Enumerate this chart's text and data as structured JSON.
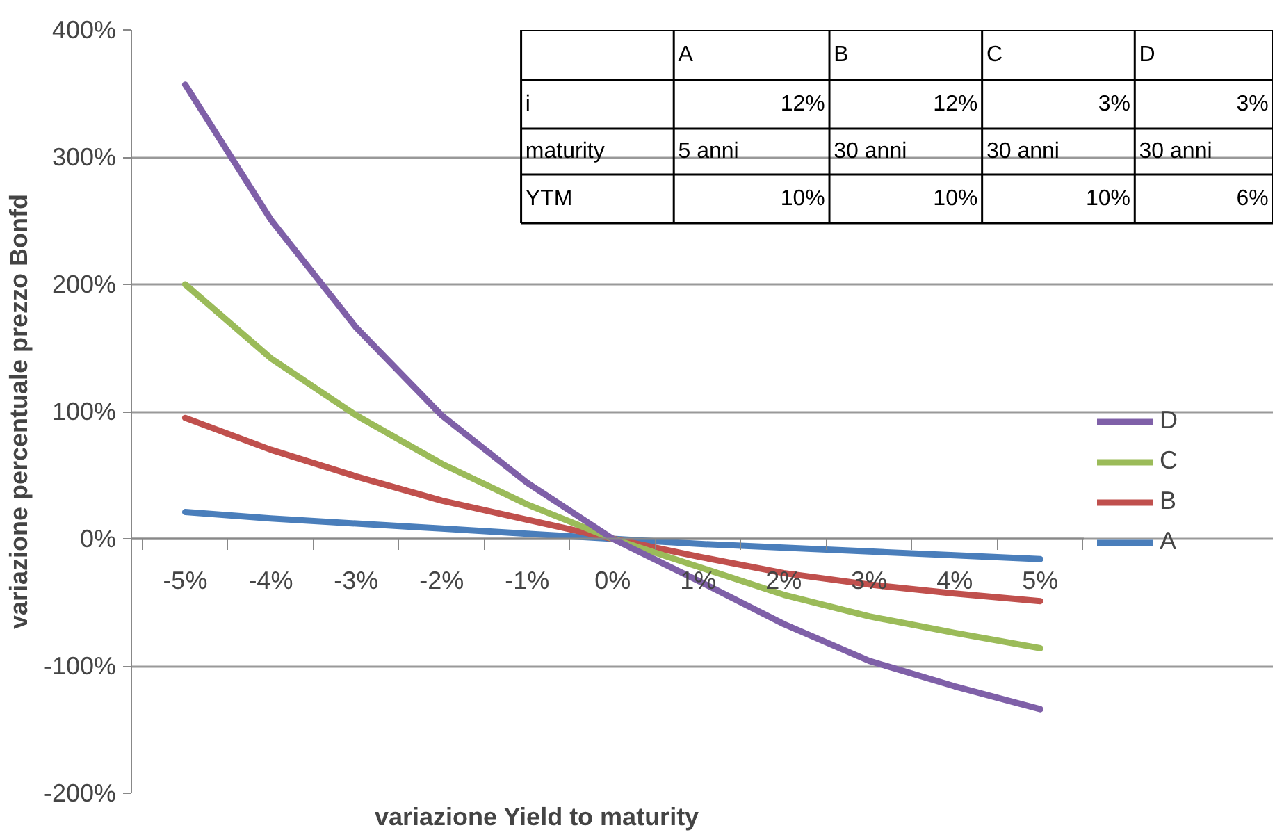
{
  "chart_data": {
    "type": "line",
    "xlabel": "variazione Yield to maturity",
    "ylabel": "variazione percentuale prezzo Bonfd",
    "categories": [
      "-5%",
      "-4%",
      "-3%",
      "-2%",
      "-1%",
      "0%",
      "1%",
      "2%",
      "3%",
      "4%",
      "5%"
    ],
    "series": [
      {
        "name": "A",
        "color": "#4a7ebb",
        "values": [
          21,
          16,
          12,
          8,
          4,
          0,
          -4,
          -7,
          -10,
          -13,
          -16
        ]
      },
      {
        "name": "B",
        "color": "#c0504d",
        "values": [
          95,
          70,
          49,
          30,
          15,
          0,
          -14,
          -27,
          -36,
          -43,
          -49
        ]
      },
      {
        "name": "C",
        "color": "#9bbb59",
        "values": [
          200,
          142,
          97,
          59,
          27,
          0,
          -22,
          -44,
          -61,
          -74,
          -86
        ]
      },
      {
        "name": "D",
        "color": "#7f60a8",
        "values": [
          357,
          251,
          166,
          97,
          44,
          0,
          -33,
          -67,
          -96,
          -116,
          -134
        ]
      }
    ],
    "ylim": [
      -200,
      400
    ],
    "yticks": [
      {
        "value": -200,
        "label": "-200%"
      },
      {
        "value": -100,
        "label": "-100%"
      },
      {
        "value": 0,
        "label": "0%"
      },
      {
        "value": 100,
        "label": "100%"
      },
      {
        "value": 200,
        "label": "200%"
      },
      {
        "value": 300,
        "label": "300%"
      },
      {
        "value": 400,
        "label": "400%"
      }
    ],
    "grid": "y",
    "legend": "right",
    "marker": "none",
    "line_style": "solid",
    "annotations": [
      "A",
      "B",
      "C",
      "D",
      "i",
      "12%",
      "12%",
      "3%",
      "3%",
      "maturity",
      "5 anni",
      "30 anni",
      "30 anni",
      "30 anni",
      "YTM",
      "10%",
      "10%",
      "10%",
      "6%"
    ]
  }
}
